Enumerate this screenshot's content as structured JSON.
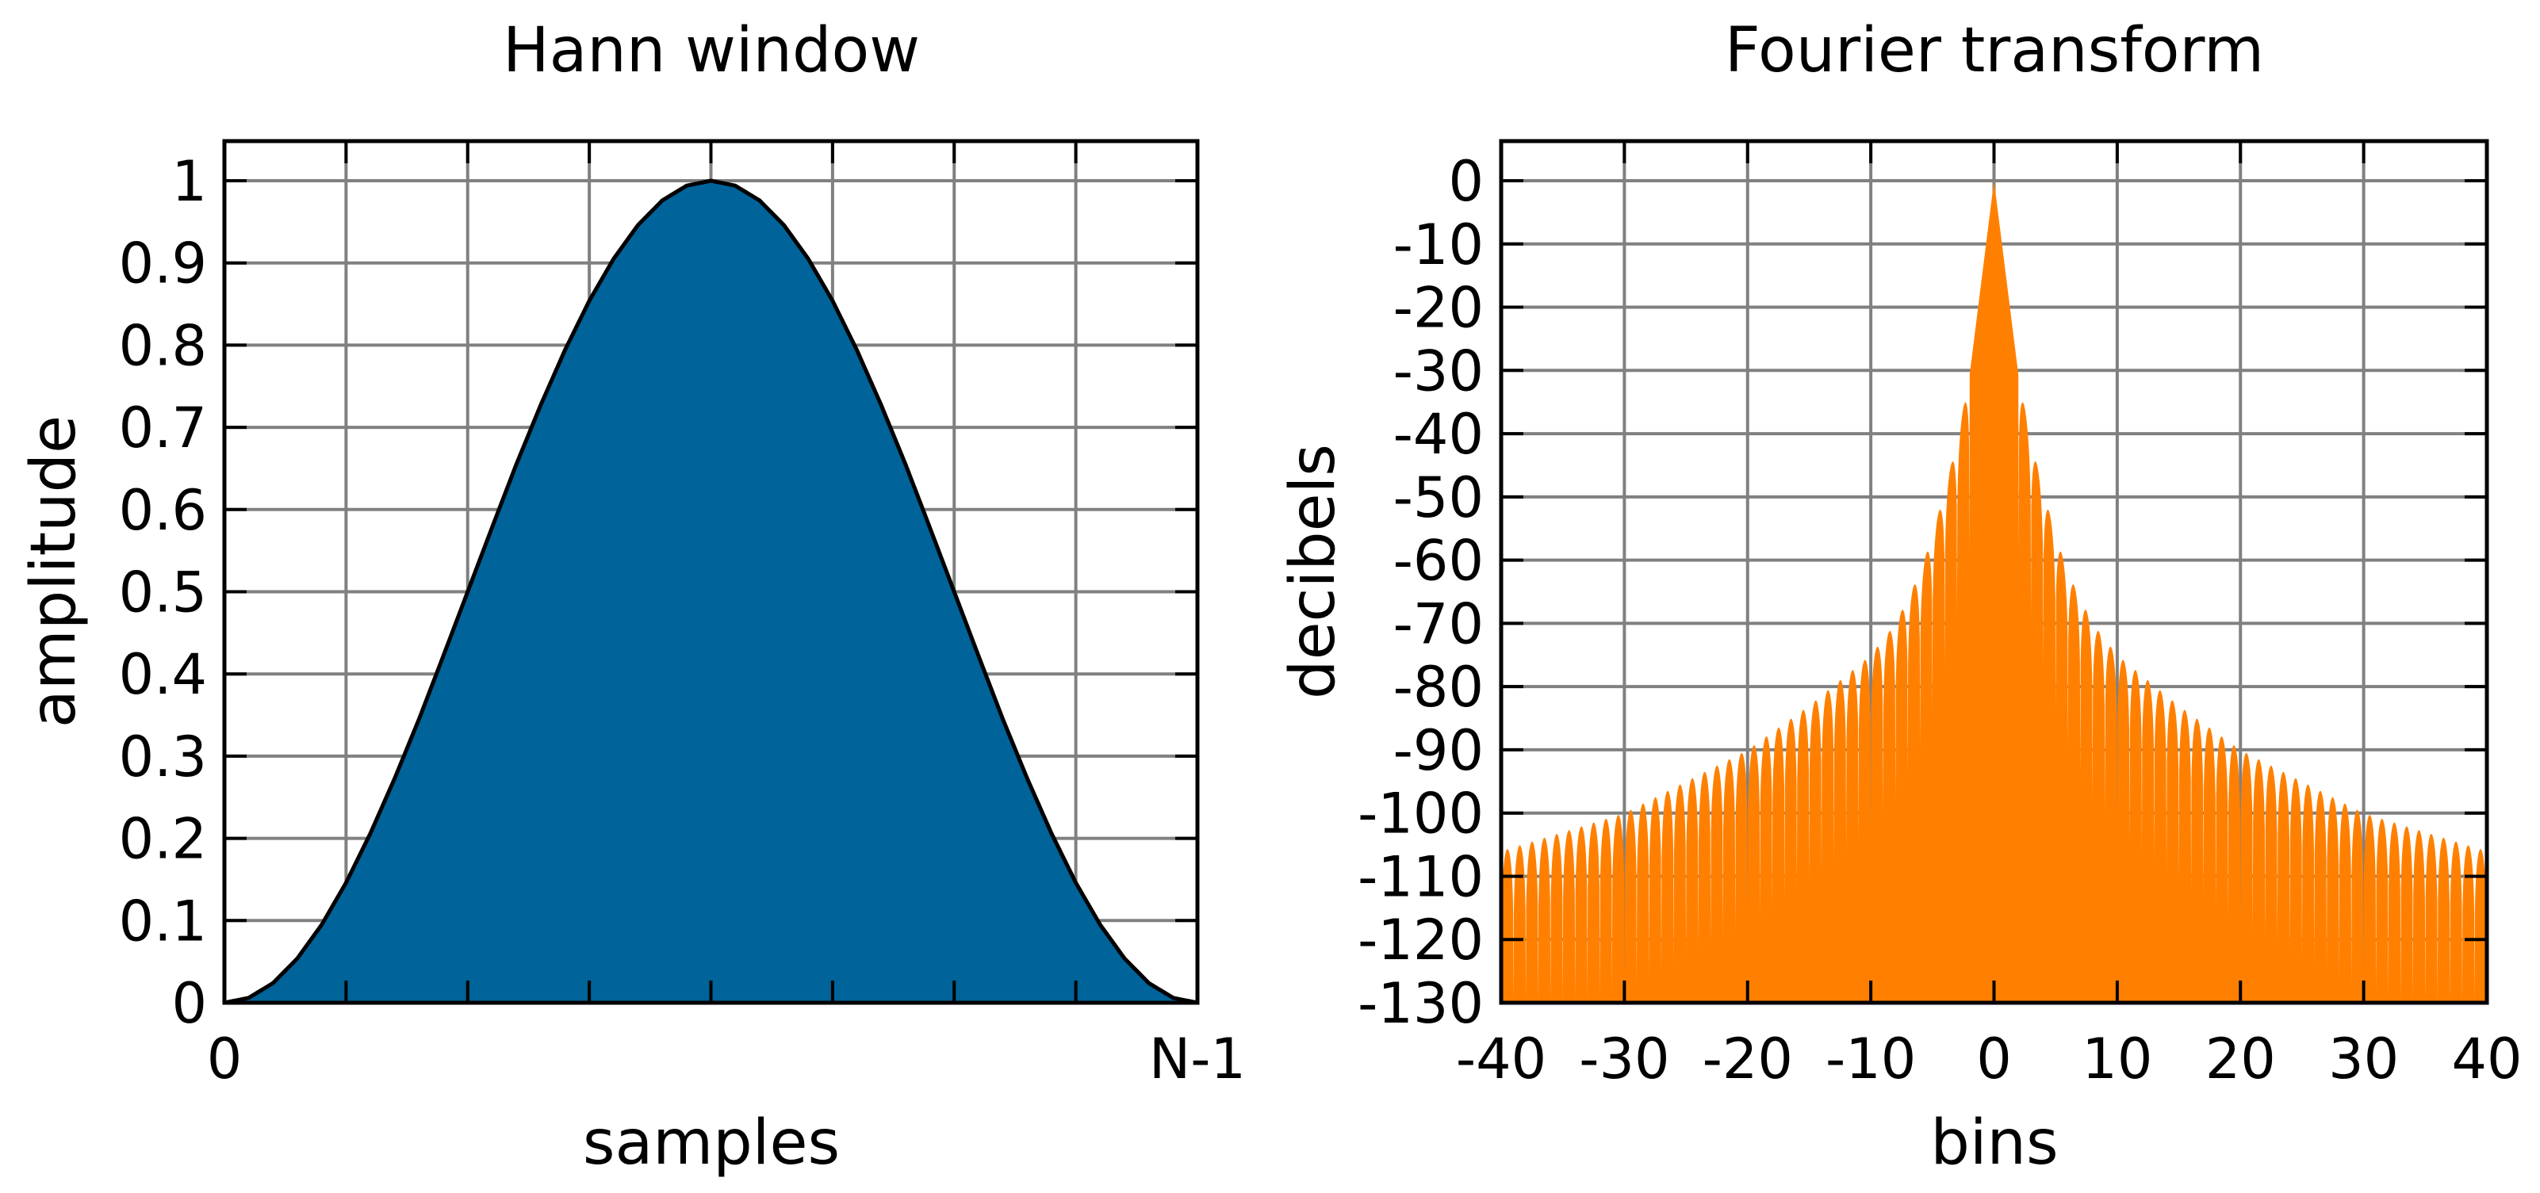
{
  "chart_data": [
    {
      "type": "area",
      "title": "Hann window",
      "xlabel": "samples",
      "ylabel": "amplitude",
      "xlim": [
        0,
        1
      ],
      "ylim": [
        0,
        1
      ],
      "x_ticks": [
        {
          "value": 0,
          "label": "0"
        },
        {
          "value": 1,
          "label": "N-1"
        }
      ],
      "y_ticks": [
        {
          "value": 0,
          "label": "0"
        },
        {
          "value": 0.1,
          "label": "0.1"
        },
        {
          "value": 0.2,
          "label": "0.2"
        },
        {
          "value": 0.3,
          "label": "0.3"
        },
        {
          "value": 0.4,
          "label": "0.4"
        },
        {
          "value": 0.5,
          "label": "0.5"
        },
        {
          "value": 0.6,
          "label": "0.6"
        },
        {
          "value": 0.7,
          "label": "0.7"
        },
        {
          "value": 0.8,
          "label": "0.8"
        },
        {
          "value": 0.9,
          "label": "0.9"
        },
        {
          "value": 1,
          "label": "1"
        }
      ],
      "x_gridlines": [
        0,
        0.125,
        0.25,
        0.375,
        0.5,
        0.625,
        0.75,
        0.875,
        1
      ],
      "grid": true,
      "series": [
        {
          "x": [
            0,
            0.025,
            0.05,
            0.075,
            0.1,
            0.125,
            0.15,
            0.175,
            0.2,
            0.225,
            0.25,
            0.275,
            0.3,
            0.325,
            0.35,
            0.375,
            0.4,
            0.425,
            0.45,
            0.475,
            0.5,
            0.525,
            0.55,
            0.575,
            0.6,
            0.625,
            0.65,
            0.675,
            0.7,
            0.725,
            0.75,
            0.775,
            0.8,
            0.825,
            0.85,
            0.875,
            0.9,
            0.925,
            0.95,
            0.975,
            1
          ],
          "y": [
            0,
            0.006,
            0.024,
            0.054,
            0.095,
            0.146,
            0.206,
            0.273,
            0.345,
            0.422,
            0.5,
            0.578,
            0.655,
            0.727,
            0.794,
            0.854,
            0.905,
            0.946,
            0.976,
            0.994,
            1,
            0.994,
            0.976,
            0.946,
            0.905,
            0.854,
            0.794,
            0.727,
            0.655,
            0.578,
            0.5,
            0.422,
            0.345,
            0.273,
            0.206,
            0.146,
            0.095,
            0.054,
            0.024,
            0.006,
            0
          ]
        }
      ],
      "colors": {
        "fill": "#00639a",
        "line": "#000000"
      }
    },
    {
      "type": "area",
      "title": "Fourier transform",
      "xlabel": "bins",
      "ylabel": "decibels",
      "xlim": [
        -40,
        40
      ],
      "ylim": [
        -130,
        0
      ],
      "x_ticks": [
        {
          "value": -40,
          "label": "-40"
        },
        {
          "value": -30,
          "label": "-30"
        },
        {
          "value": -20,
          "label": "-20"
        },
        {
          "value": -10,
          "label": "-10"
        },
        {
          "value": 0,
          "label": "0"
        },
        {
          "value": 10,
          "label": "10"
        },
        {
          "value": 20,
          "label": "20"
        },
        {
          "value": 30,
          "label": "30"
        },
        {
          "value": 40,
          "label": "40"
        }
      ],
      "y_ticks": [
        {
          "value": 0,
          "label": "0"
        },
        {
          "value": -10,
          "label": "-10"
        },
        {
          "value": -20,
          "label": "-20"
        },
        {
          "value": -30,
          "label": "-30"
        },
        {
          "value": -40,
          "label": "-40"
        },
        {
          "value": -50,
          "label": "-50"
        },
        {
          "value": -60,
          "label": "-60"
        },
        {
          "value": -70,
          "label": "-70"
        },
        {
          "value": -80,
          "label": "-80"
        },
        {
          "value": -90,
          "label": "-90"
        },
        {
          "value": -100,
          "label": "-100"
        },
        {
          "value": -110,
          "label": "-110"
        },
        {
          "value": -120,
          "label": "-120"
        },
        {
          "value": -130,
          "label": "-130"
        }
      ],
      "grid": true,
      "series": [
        {
          "x": [
            -40,
            -35,
            -30,
            -25,
            -20,
            -15,
            -10,
            -8,
            -6,
            -5,
            -4,
            -3,
            -2,
            0,
            2,
            3,
            4,
            5,
            6,
            8,
            10,
            15,
            20,
            25,
            30,
            35,
            40
          ],
          "y": [
            -106,
            -103,
            -100,
            -95,
            -90,
            -83,
            -75,
            -70,
            -62,
            -56,
            -49,
            -41,
            -31,
            0,
            -31,
            -41,
            -49,
            -56,
            -62,
            -70,
            -75,
            -83,
            -90,
            -95,
            -100,
            -103,
            -106
          ]
        }
      ],
      "colors": {
        "fill": "#ff8000"
      }
    }
  ]
}
